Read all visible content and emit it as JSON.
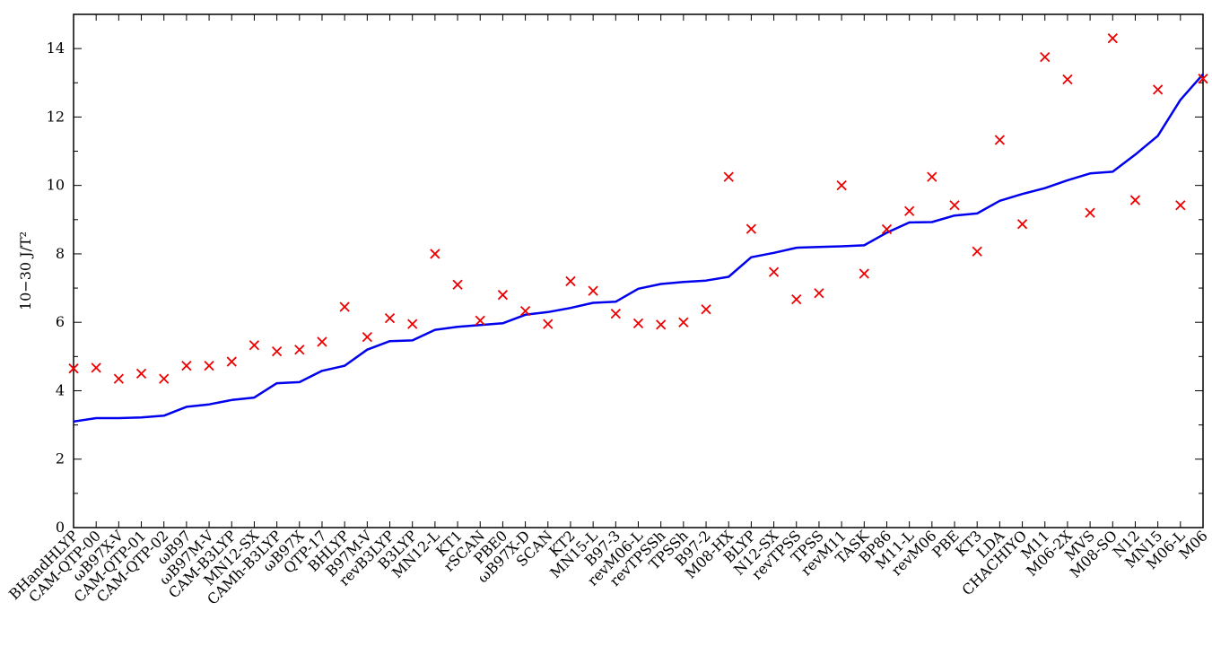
{
  "chart_data": {
    "type": "line",
    "ylabel": "10−30 J/T²",
    "ylim": [
      0,
      15
    ],
    "yticks": [
      0,
      2,
      4,
      6,
      8,
      10,
      12,
      14
    ],
    "grid": false,
    "categories": [
      "BHandHLYP",
      "CAM-QTP-00",
      "ωB97X-V",
      "CAM-QTP-01",
      "CAM-QTP-02",
      "ωB97",
      "ωB97M-V",
      "CAM-B3LYP",
      "MN12-SX",
      "CAMh-B3LYP",
      "ωB97X",
      "QTP-17",
      "BHLYP",
      "B97M-V",
      "revB3LYP",
      "B3LYP",
      "MN12-L",
      "KT1",
      "rSCAN",
      "PBE0",
      "ωB97X-D",
      "SCAN",
      "KT2",
      "MN15-L",
      "B97-3",
      "revM06-L",
      "revTPSSh",
      "TPSSh",
      "B97-2",
      "M08-HX",
      "BLYP",
      "N12-SX",
      "revTPSS",
      "TPSS",
      "revM11",
      "TASK",
      "BP86",
      "M11-L",
      "revM06",
      "PBE",
      "KT3",
      "LDA",
      "CHACHIYO",
      "M11",
      "M06-2X",
      "MVS",
      "M08-SO",
      "N12",
      "MN15",
      "M06-L",
      "M06"
    ],
    "series": [
      {
        "kind": "line",
        "color": "#0000ee",
        "values": [
          3.1,
          3.2,
          3.2,
          3.22,
          3.27,
          3.53,
          3.6,
          3.73,
          3.8,
          4.22,
          4.25,
          4.58,
          4.73,
          5.2,
          5.45,
          5.47,
          5.78,
          5.87,
          5.92,
          5.97,
          6.22,
          6.3,
          6.42,
          6.57,
          6.6,
          6.98,
          7.12,
          7.18,
          7.22,
          7.33,
          7.9,
          8.03,
          8.18,
          8.2,
          8.22,
          8.25,
          8.62,
          8.92,
          8.93,
          9.12,
          9.18,
          9.55,
          9.75,
          9.92,
          10.15,
          10.35,
          10.4,
          10.9,
          11.45,
          12.5,
          13.25
        ]
      },
      {
        "kind": "scatter",
        "marker": "x",
        "color": "#ee0000",
        "values": [
          4.65,
          4.67,
          4.35,
          4.5,
          4.35,
          4.73,
          4.73,
          4.85,
          5.33,
          5.15,
          5.2,
          5.43,
          6.45,
          5.57,
          6.12,
          5.95,
          8.0,
          7.1,
          6.05,
          6.8,
          6.33,
          5.95,
          7.2,
          6.92,
          6.25,
          5.97,
          5.93,
          6.0,
          6.38,
          10.25,
          8.73,
          7.47,
          6.67,
          6.85,
          10.0,
          7.42,
          8.72,
          9.25,
          10.25,
          9.42,
          8.07,
          11.33,
          8.87,
          13.75,
          13.1,
          9.2,
          14.3,
          9.57,
          12.8,
          9.42,
          13.12
        ]
      }
    ]
  }
}
